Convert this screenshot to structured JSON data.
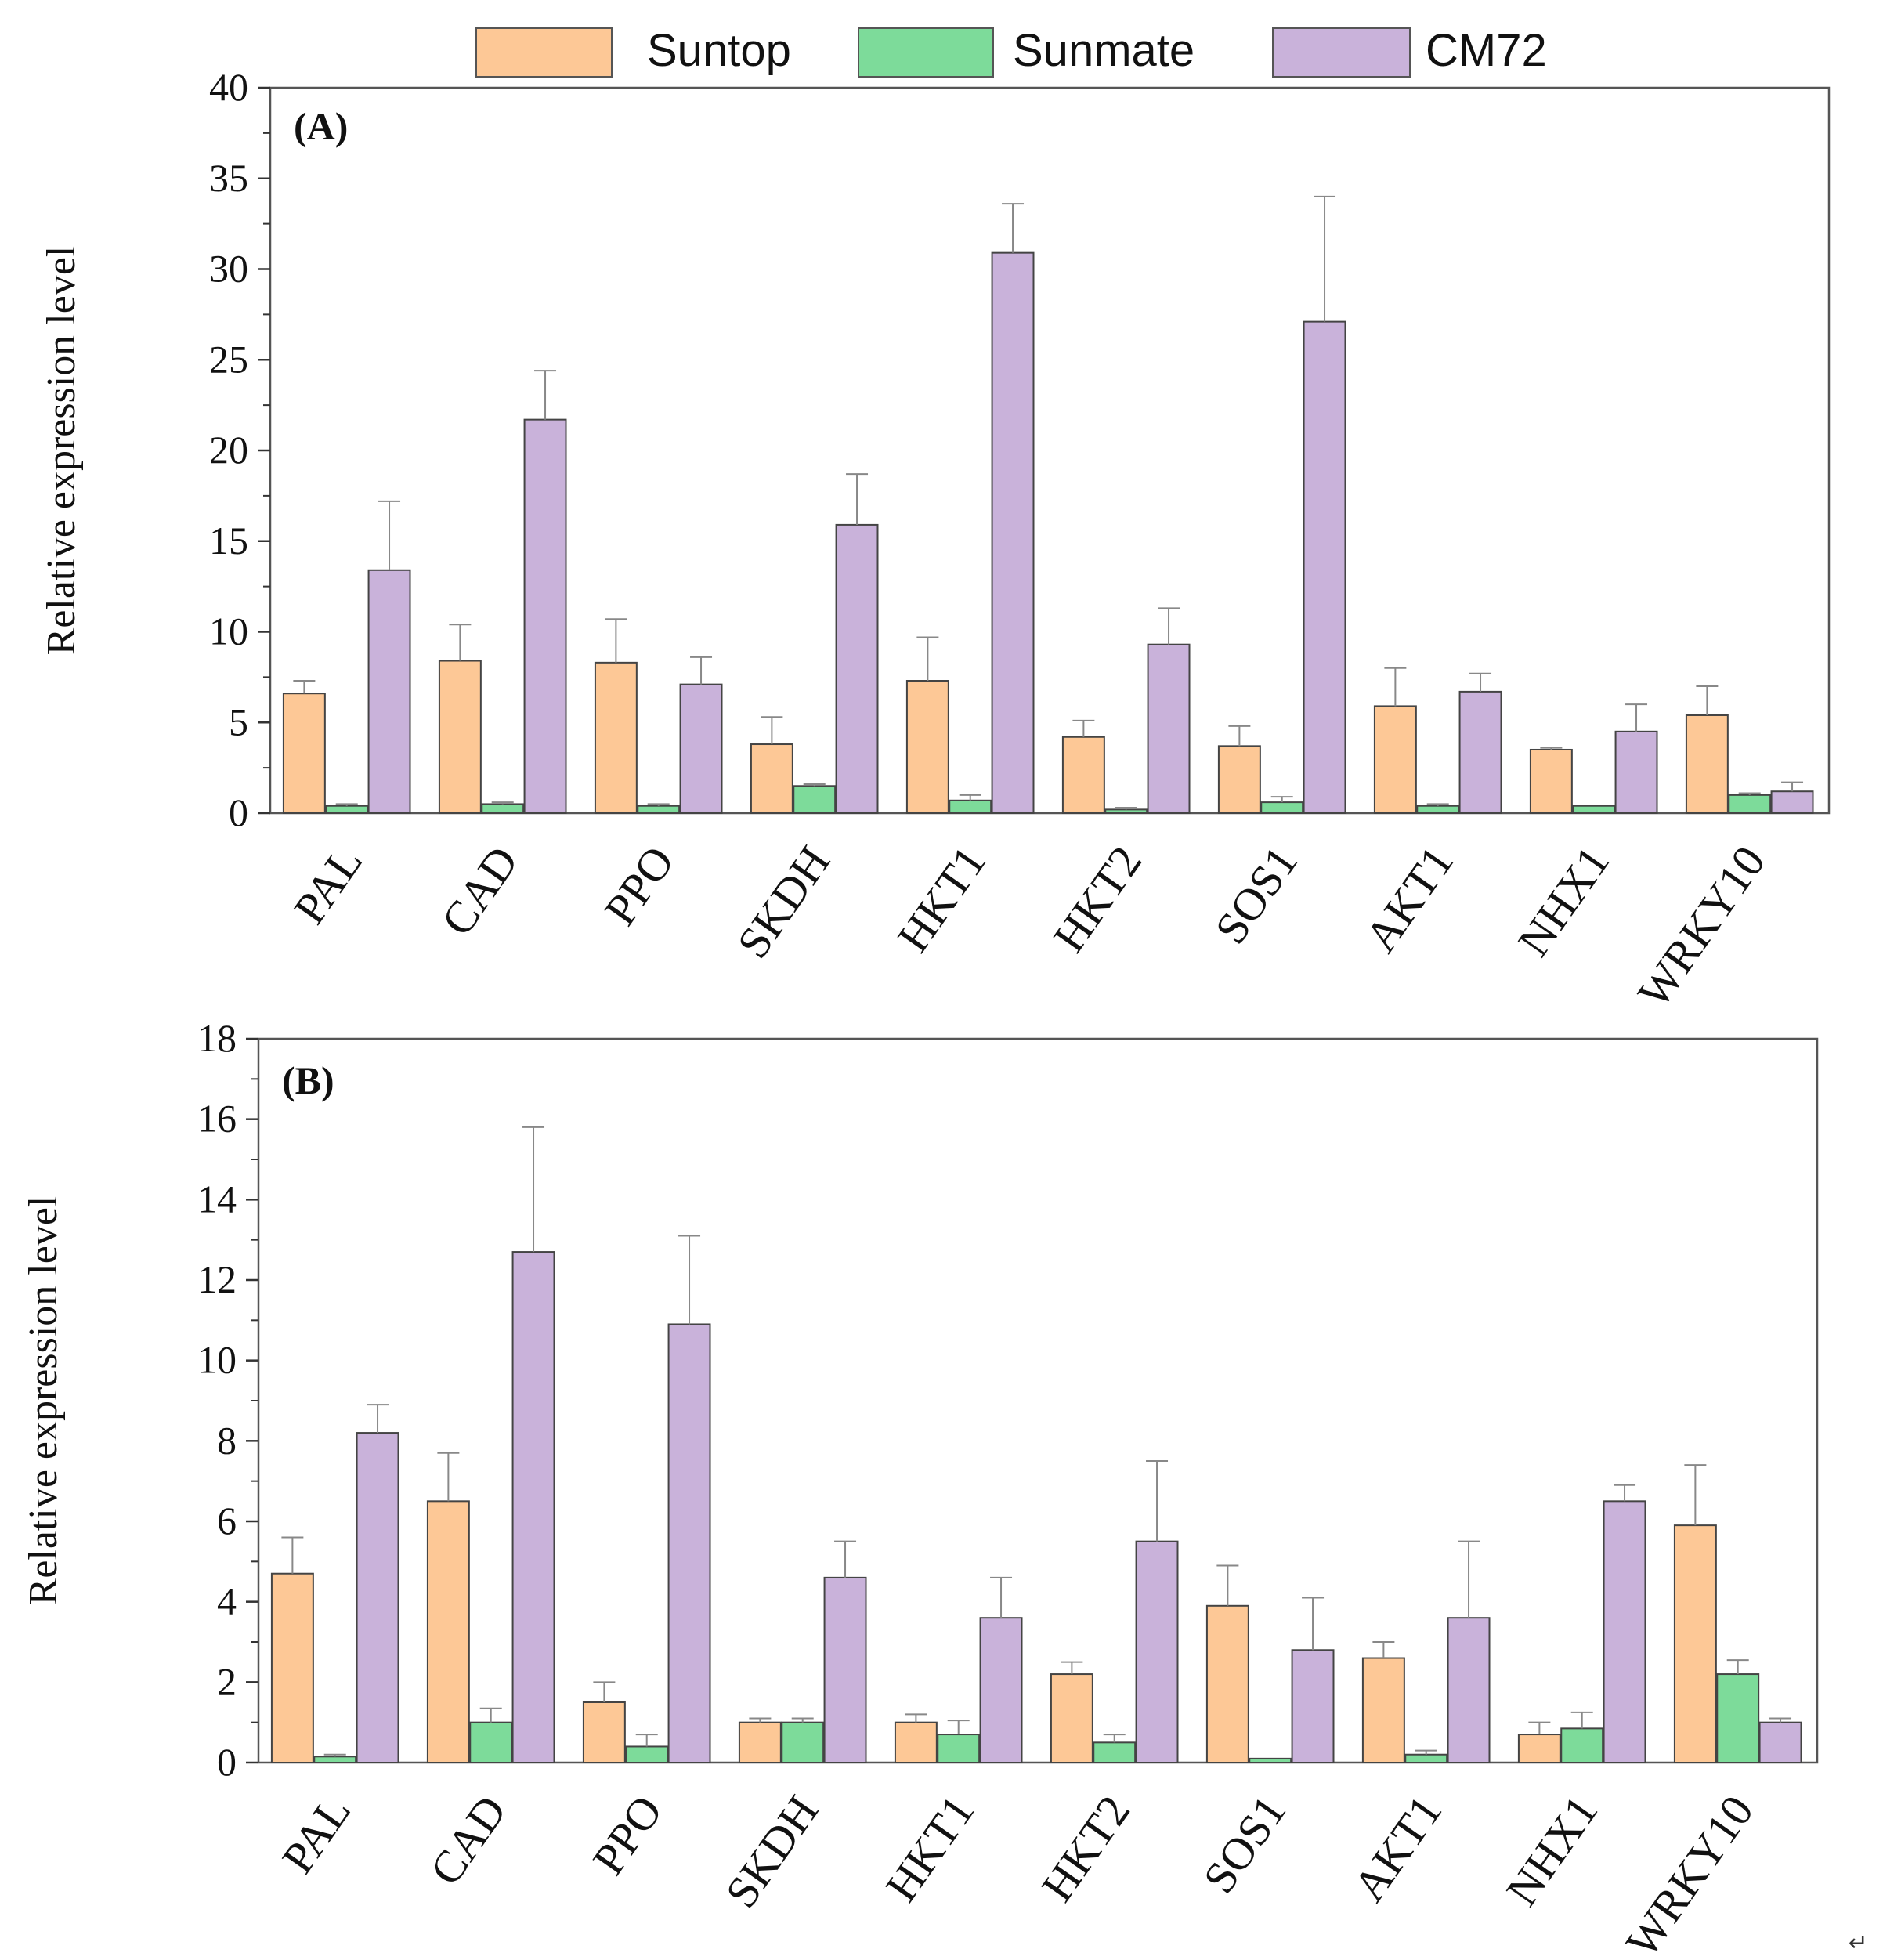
{
  "legend": {
    "entries": [
      {
        "name": "Suntop",
        "color": "#FDC896"
      },
      {
        "name": "Sunmate",
        "color": "#7DDB9A"
      },
      {
        "name": "CM72",
        "color": "#C9B2DA"
      }
    ]
  },
  "corner_mark": "↵",
  "chart_data": [
    {
      "type": "bar",
      "title": "(A)",
      "xlabel": "",
      "ylabel": "Relative expression level",
      "ylim": [
        0,
        40
      ],
      "yticks": [
        0,
        5,
        10,
        15,
        20,
        25,
        30,
        35,
        40
      ],
      "categories": [
        "PAL",
        "CAD",
        "PPO",
        "SKDH",
        "HKT1",
        "HKT2",
        "SOS1",
        "AKT1",
        "NHX1",
        "WRKY10"
      ],
      "series": [
        {
          "name": "Suntop",
          "values": [
            6.6,
            8.4,
            8.3,
            3.8,
            7.3,
            4.2,
            3.7,
            5.9,
            3.5,
            5.4
          ],
          "errors": [
            0.7,
            2.0,
            2.4,
            1.5,
            2.4,
            0.9,
            1.1,
            2.1,
            0.1,
            1.6
          ]
        },
        {
          "name": "Sunmate",
          "values": [
            0.4,
            0.5,
            0.4,
            1.5,
            0.7,
            0.2,
            0.6,
            0.4,
            0.4,
            1.0
          ],
          "errors": [
            0.1,
            0.1,
            0.1,
            0.1,
            0.3,
            0.1,
            0.3,
            0.1,
            0.0,
            0.1
          ]
        },
        {
          "name": "CM72",
          "values": [
            13.4,
            21.7,
            7.1,
            15.9,
            30.9,
            9.3,
            27.1,
            6.7,
            4.5,
            1.2
          ],
          "errors": [
            3.8,
            2.7,
            1.5,
            2.8,
            2.7,
            2.0,
            6.9,
            1.0,
            1.5,
            0.5
          ]
        }
      ]
    },
    {
      "type": "bar",
      "title": "(B)",
      "xlabel": "",
      "ylabel": "Relative expression level",
      "ylim": [
        0,
        18
      ],
      "yticks": [
        0,
        2,
        4,
        6,
        8,
        10,
        12,
        14,
        16,
        18
      ],
      "categories": [
        "PAL",
        "CAD",
        "PPO",
        "SKDH",
        "HKT1",
        "HKT2",
        "SOS1",
        "AKT1",
        "NHX1",
        "WRKY10"
      ],
      "series": [
        {
          "name": "Suntop",
          "values": [
            4.7,
            6.5,
            1.5,
            1.0,
            1.0,
            2.2,
            3.9,
            2.6,
            0.7,
            5.9
          ],
          "errors": [
            0.9,
            1.2,
            0.5,
            0.1,
            0.2,
            0.3,
            1.0,
            0.4,
            0.3,
            1.5
          ]
        },
        {
          "name": "Sunmate",
          "values": [
            0.15,
            1.0,
            0.4,
            1.0,
            0.7,
            0.5,
            0.1,
            0.2,
            0.85,
            2.2
          ],
          "errors": [
            0.05,
            0.35,
            0.3,
            0.1,
            0.35,
            0.2,
            0.0,
            0.1,
            0.4,
            0.35
          ]
        },
        {
          "name": "CM72",
          "values": [
            8.2,
            12.7,
            10.9,
            4.6,
            3.6,
            5.5,
            2.8,
            3.6,
            6.5,
            1.0
          ],
          "errors": [
            0.7,
            3.1,
            2.2,
            0.9,
            1.0,
            2.0,
            1.3,
            1.9,
            0.4,
            0.1
          ]
        }
      ]
    }
  ]
}
